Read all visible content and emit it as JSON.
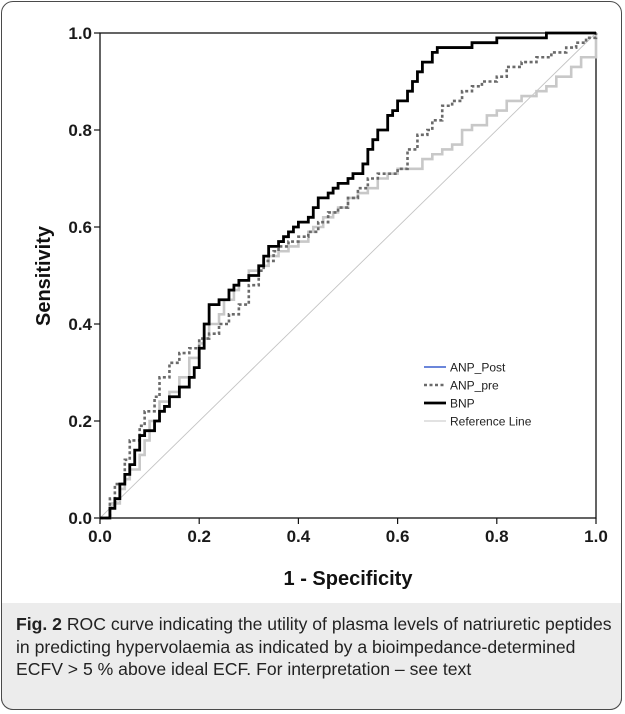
{
  "chart_data": {
    "type": "line",
    "xlabel": "1 - Specificity",
    "ylabel": "Sensitivity",
    "xlim": [
      0,
      1
    ],
    "ylim": [
      0,
      1
    ],
    "xticks": [
      "0.0",
      "0.2",
      "0.4",
      "0.6",
      "0.8",
      "1.0"
    ],
    "yticks": [
      "0.0",
      "0.2",
      "0.4",
      "0.6",
      "0.8",
      "1.0"
    ],
    "grid": false,
    "legend_position": "lower-right",
    "series": [
      {
        "name": "ANP_Post",
        "color": "#c8c8c8",
        "legend_color": "#3a5fcd",
        "style": "solid",
        "x": [
          0,
          0.02,
          0.04,
          0.05,
          0.06,
          0.08,
          0.09,
          0.1,
          0.12,
          0.14,
          0.16,
          0.18,
          0.2,
          0.21,
          0.22,
          0.24,
          0.25,
          0.27,
          0.28,
          0.3,
          0.32,
          0.34,
          0.36,
          0.38,
          0.4,
          0.42,
          0.43,
          0.45,
          0.47,
          0.48,
          0.5,
          0.52,
          0.54,
          0.56,
          0.58,
          0.6,
          0.62,
          0.65,
          0.67,
          0.69,
          0.71,
          0.73,
          0.75,
          0.78,
          0.8,
          0.82,
          0.85,
          0.88,
          0.9,
          0.92,
          0.95,
          0.97,
          1.0
        ],
        "y": [
          0,
          0.03,
          0.06,
          0.08,
          0.1,
          0.13,
          0.16,
          0.2,
          0.24,
          0.26,
          0.29,
          0.33,
          0.36,
          0.37,
          0.4,
          0.42,
          0.45,
          0.47,
          0.49,
          0.51,
          0.52,
          0.54,
          0.55,
          0.56,
          0.57,
          0.59,
          0.6,
          0.62,
          0.63,
          0.64,
          0.66,
          0.67,
          0.68,
          0.7,
          0.71,
          0.72,
          0.72,
          0.74,
          0.75,
          0.76,
          0.77,
          0.8,
          0.81,
          0.83,
          0.84,
          0.86,
          0.87,
          0.88,
          0.89,
          0.91,
          0.93,
          0.95,
          1.0
        ]
      },
      {
        "name": "ANP_pre",
        "color": "#6a6a6a",
        "style": "dotted",
        "x": [
          0,
          0.02,
          0.03,
          0.05,
          0.06,
          0.08,
          0.09,
          0.11,
          0.12,
          0.14,
          0.16,
          0.18,
          0.2,
          0.22,
          0.24,
          0.26,
          0.28,
          0.3,
          0.32,
          0.33,
          0.35,
          0.36,
          0.38,
          0.4,
          0.42,
          0.44,
          0.46,
          0.48,
          0.5,
          0.52,
          0.54,
          0.56,
          0.58,
          0.6,
          0.62,
          0.64,
          0.66,
          0.67,
          0.69,
          0.71,
          0.73,
          0.75,
          0.77,
          0.8,
          0.82,
          0.85,
          0.88,
          0.91,
          0.94,
          0.96,
          0.98,
          1.0
        ],
        "y": [
          0,
          0.04,
          0.07,
          0.12,
          0.16,
          0.19,
          0.22,
          0.25,
          0.29,
          0.32,
          0.34,
          0.35,
          0.37,
          0.38,
          0.4,
          0.42,
          0.44,
          0.48,
          0.51,
          0.53,
          0.55,
          0.56,
          0.57,
          0.58,
          0.59,
          0.61,
          0.63,
          0.64,
          0.66,
          0.68,
          0.7,
          0.71,
          0.71,
          0.72,
          0.76,
          0.79,
          0.8,
          0.82,
          0.85,
          0.86,
          0.88,
          0.89,
          0.9,
          0.91,
          0.93,
          0.94,
          0.95,
          0.96,
          0.97,
          0.98,
          0.99,
          1.0
        ]
      },
      {
        "name": "BNP",
        "color": "#000000",
        "style": "solid",
        "x": [
          0,
          0.02,
          0.03,
          0.04,
          0.05,
          0.06,
          0.07,
          0.08,
          0.09,
          0.11,
          0.12,
          0.13,
          0.14,
          0.16,
          0.18,
          0.19,
          0.2,
          0.21,
          0.22,
          0.24,
          0.26,
          0.27,
          0.28,
          0.3,
          0.32,
          0.33,
          0.34,
          0.36,
          0.37,
          0.38,
          0.39,
          0.4,
          0.42,
          0.43,
          0.44,
          0.46,
          0.47,
          0.48,
          0.5,
          0.51,
          0.53,
          0.54,
          0.55,
          0.56,
          0.58,
          0.59,
          0.6,
          0.62,
          0.63,
          0.64,
          0.65,
          0.67,
          0.68,
          0.7,
          0.72,
          0.75,
          0.78,
          0.8,
          0.83,
          0.86,
          0.9,
          0.93,
          0.95,
          0.98,
          1.0
        ],
        "y": [
          0,
          0.02,
          0.04,
          0.07,
          0.09,
          0.11,
          0.14,
          0.17,
          0.18,
          0.2,
          0.22,
          0.23,
          0.25,
          0.27,
          0.29,
          0.31,
          0.35,
          0.4,
          0.44,
          0.45,
          0.47,
          0.48,
          0.49,
          0.5,
          0.52,
          0.54,
          0.56,
          0.57,
          0.58,
          0.59,
          0.6,
          0.61,
          0.62,
          0.64,
          0.66,
          0.67,
          0.68,
          0.69,
          0.7,
          0.71,
          0.73,
          0.76,
          0.78,
          0.8,
          0.83,
          0.84,
          0.86,
          0.88,
          0.9,
          0.92,
          0.94,
          0.96,
          0.97,
          0.97,
          0.97,
          0.98,
          0.98,
          0.99,
          0.99,
          0.99,
          1.0,
          1.0,
          1.0,
          1.0,
          1.0
        ]
      },
      {
        "name": "Reference Line",
        "color": "#c4c4c4",
        "style": "solid",
        "x": [
          0,
          1
        ],
        "y": [
          0,
          1
        ]
      }
    ]
  },
  "caption": {
    "label": "Fig. 2",
    "text": " ROC curve indicating the utility of plasma levels of natriuretic peptides in predicting hypervolaemia as indicated by a bioimpedance-determined ECFV > 5 % above ideal ECF. For interpretation – see text"
  }
}
